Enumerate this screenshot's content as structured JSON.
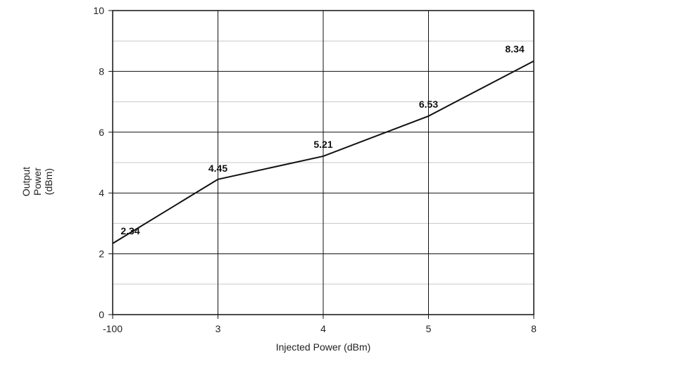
{
  "chart_data": {
    "type": "line",
    "categories": [
      "-100",
      "3",
      "4",
      "5",
      "8"
    ],
    "series": [
      {
        "values": [
          2.34,
          4.45,
          5.21,
          6.53,
          8.34
        ]
      }
    ],
    "data_labels": [
      "2.34",
      "4.45",
      "5.21",
      "6.53",
      "8.34"
    ],
    "xlabel": "Injected Power (dBm)",
    "ylabel_lines": [
      "Output",
      "Power",
      "(dBm)"
    ],
    "ylim": [
      0,
      10
    ],
    "yticks": [
      "0",
      "2",
      "4",
      "6",
      "8",
      "10"
    ],
    "grid": true,
    "minor_grid": true,
    "line_color": "#111111",
    "grid_color": "#111111",
    "minor_grid_color": "#c8c8c8"
  }
}
